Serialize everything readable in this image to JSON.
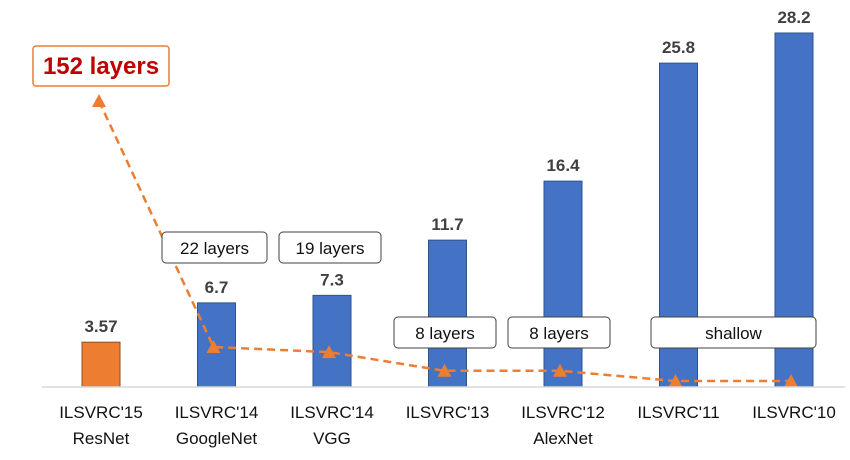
{
  "chart_data": {
    "type": "bar",
    "title": "",
    "xlabel": "",
    "ylabel": "",
    "ylim": [
      0,
      30
    ],
    "categories": [
      {
        "line1": "ILSVRC'15",
        "line2": "ResNet"
      },
      {
        "line1": "ILSVRC'14",
        "line2": "GoogleNet"
      },
      {
        "line1": "ILSVRC'14",
        "line2": "VGG"
      },
      {
        "line1": "ILSVRC'13",
        "line2": ""
      },
      {
        "line1": "ILSVRC'12",
        "line2": "AlexNet"
      },
      {
        "line1": "ILSVRC'11",
        "line2": ""
      },
      {
        "line1": "ILSVRC'10",
        "line2": ""
      }
    ],
    "values": [
      3.57,
      6.7,
      7.3,
      11.7,
      16.4,
      25.8,
      28.2
    ],
    "value_labels": [
      "3.57",
      "6.7",
      "7.3",
      "11.7",
      "16.4",
      "25.8",
      "28.2"
    ],
    "bar_colors": [
      "#ED7D31",
      "#4472C4",
      "#4472C4",
      "#4472C4",
      "#4472C4",
      "#4472C4",
      "#4472C4"
    ],
    "depth_series": {
      "name": "layers",
      "values": [
        152,
        22,
        19,
        8,
        8,
        2,
        2
      ],
      "color": "#ED7D31",
      "ylim": [
        0,
        160
      ]
    },
    "annotations": [
      {
        "text": "152 layers",
        "category": 0,
        "style": "highlight",
        "color": "#C00000"
      },
      {
        "text": "22 layers",
        "category": 1,
        "style": "box"
      },
      {
        "text": "19 layers",
        "category": 2,
        "style": "box"
      },
      {
        "text": "8 layers",
        "category": 3,
        "style": "box"
      },
      {
        "text": "8 layers",
        "category": 4,
        "style": "box"
      },
      {
        "text": "shallow",
        "category": 5.5,
        "style": "box"
      }
    ],
    "grid": false,
    "legend": "none"
  }
}
